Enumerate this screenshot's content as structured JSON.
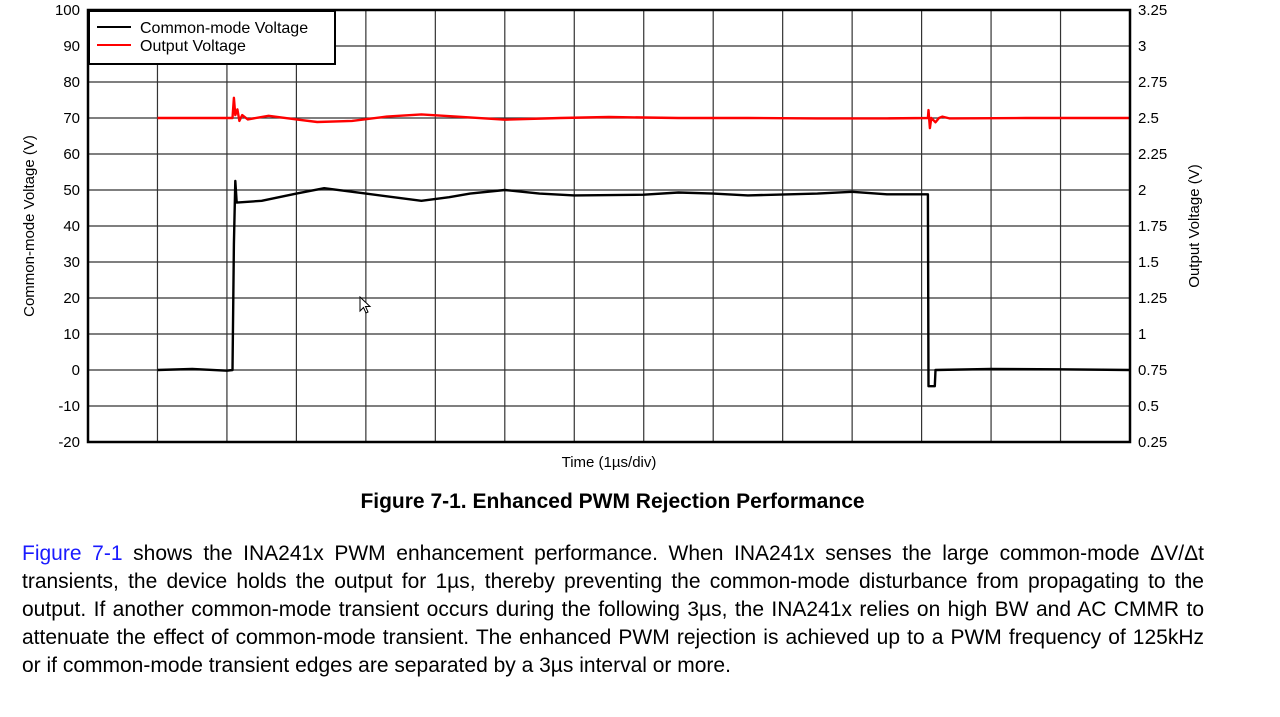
{
  "chart_data": {
    "type": "line",
    "title": "Figure 7-1. Enhanced PWM Rejection Performance",
    "xlabel": "Time (1µs/div)",
    "ylabel": "Common-mode Voltage (V)",
    "y2label": "Output Voltage (V)",
    "xlim": [
      0,
      15
    ],
    "ylim": [
      -20,
      100
    ],
    "y2lim": [
      0.25,
      3.25
    ],
    "yticks": [
      "100",
      "90",
      "80",
      "70",
      "60",
      "50",
      "40",
      "30",
      "20",
      "10",
      "0",
      "-10",
      "-20"
    ],
    "y2ticks": [
      "3.25",
      "3",
      "2.75",
      "2.5",
      "2.25",
      "2",
      "1.75",
      "1.5",
      "1.25",
      "1",
      "0.75",
      "0.5",
      "0.25"
    ],
    "grid": true,
    "legend_position": "top-left",
    "series": [
      {
        "name": "Common-mode Voltage",
        "color": "#000000",
        "axis": "left",
        "points": [
          [
            1.0,
            0
          ],
          [
            1.5,
            0.3
          ],
          [
            2.0,
            -0.2
          ],
          [
            2.08,
            0
          ],
          [
            2.1,
            35
          ],
          [
            2.12,
            52.5
          ],
          [
            2.14,
            46.5
          ],
          [
            2.5,
            47
          ],
          [
            3.0,
            49
          ],
          [
            3.4,
            50.5
          ],
          [
            4.0,
            49
          ],
          [
            4.8,
            47
          ],
          [
            5.2,
            48
          ],
          [
            5.5,
            49
          ],
          [
            6.0,
            50
          ],
          [
            6.5,
            49
          ],
          [
            7.0,
            48.5
          ],
          [
            8.0,
            48.7
          ],
          [
            8.5,
            49.3
          ],
          [
            9.0,
            49
          ],
          [
            9.5,
            48.5
          ],
          [
            10.5,
            49
          ],
          [
            11.0,
            49.5
          ],
          [
            11.5,
            48.8
          ],
          [
            12.09,
            48.8
          ],
          [
            12.1,
            -4.5
          ],
          [
            12.19,
            -4.5
          ],
          [
            12.2,
            0
          ],
          [
            13.0,
            0.3
          ],
          [
            14.0,
            0.2
          ],
          [
            15.0,
            0
          ]
        ]
      },
      {
        "name": "Output Voltage",
        "color": "#ff0000",
        "axis": "right",
        "points": [
          [
            1.0,
            2.5
          ],
          [
            2.08,
            2.5
          ],
          [
            2.1,
            2.64
          ],
          [
            2.12,
            2.52
          ],
          [
            2.15,
            2.56
          ],
          [
            2.18,
            2.48
          ],
          [
            2.22,
            2.52
          ],
          [
            2.3,
            2.49
          ],
          [
            2.6,
            2.515
          ],
          [
            3.0,
            2.49
          ],
          [
            3.3,
            2.472
          ],
          [
            3.8,
            2.48
          ],
          [
            4.3,
            2.51
          ],
          [
            4.8,
            2.525
          ],
          [
            5.3,
            2.51
          ],
          [
            6.0,
            2.488
          ],
          [
            6.8,
            2.5
          ],
          [
            7.5,
            2.507
          ],
          [
            8.5,
            2.5
          ],
          [
            9.5,
            2.5
          ],
          [
            10.5,
            2.497
          ],
          [
            11.5,
            2.497
          ],
          [
            12.09,
            2.5
          ],
          [
            12.1,
            2.555
          ],
          [
            12.12,
            2.43
          ],
          [
            12.14,
            2.5
          ],
          [
            12.2,
            2.47
          ],
          [
            12.25,
            2.5
          ],
          [
            12.3,
            2.51
          ],
          [
            12.4,
            2.497
          ],
          [
            13.5,
            2.5
          ],
          [
            15.0,
            2.5
          ]
        ]
      }
    ]
  },
  "paragraph": {
    "link": "Figure 7-1",
    "text": " shows the INA241x PWM enhancement performance. When INA241x senses the large common-mode ΔV/Δt transients, the device holds the output for 1µs, thereby preventing the common-mode disturbance from propagating to the output. If another common-mode transient occurs during the following 3µs, the INA241x relies on high BW and AC CMMR to attenuate the effect of common-mode transient. The enhanced PWM rejection is achieved up to a PWM frequency of 125kHz or if common-mode transient edges are separated by a 3µs interval or more."
  }
}
